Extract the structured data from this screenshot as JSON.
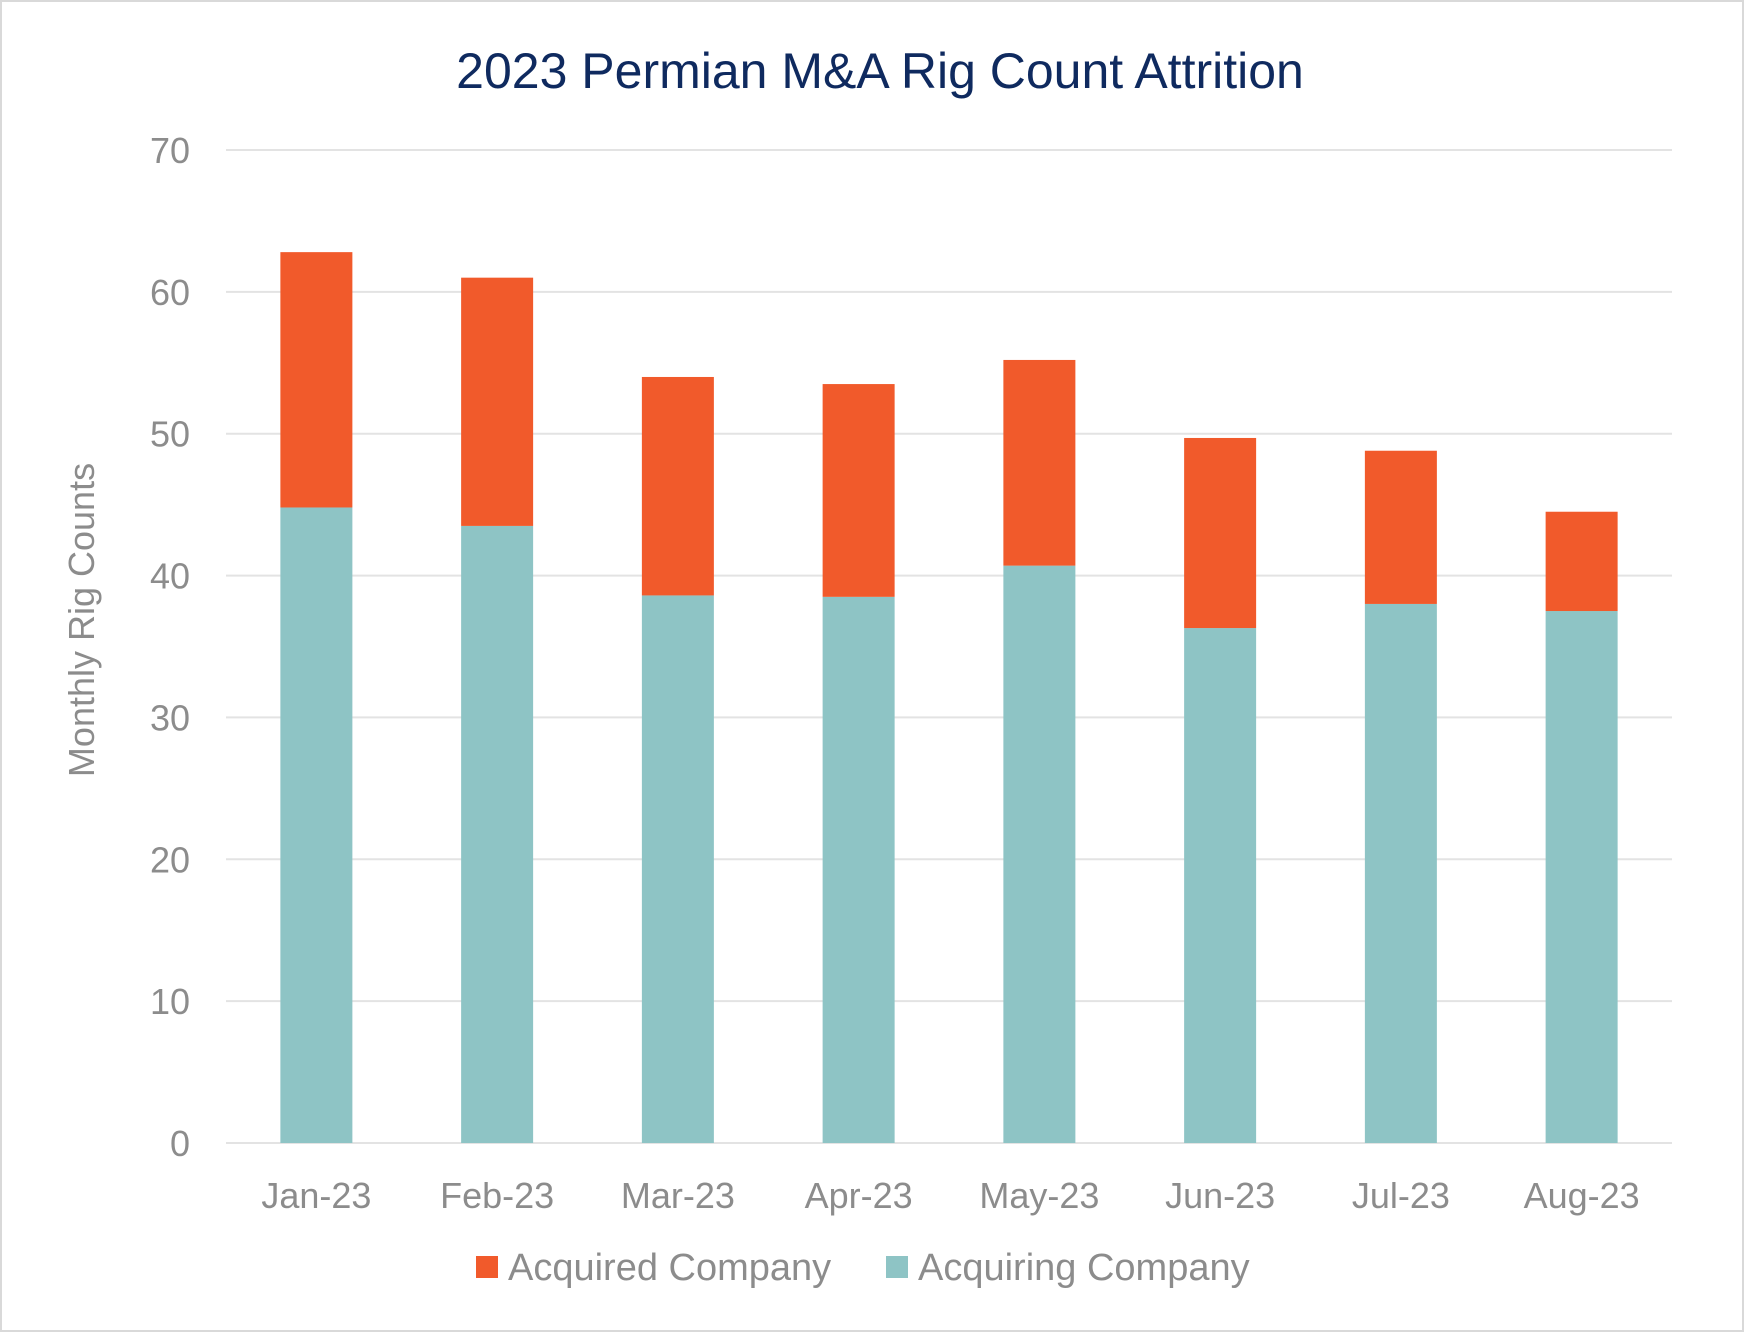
{
  "chart_data": {
    "type": "bar",
    "stacked": true,
    "title": "2023 Permian M&A Rig Count Attrition",
    "xlabel": "",
    "ylabel": "Monthly Rig Counts",
    "ylim": [
      0,
      70
    ],
    "yticks": [
      "0",
      "10",
      "20",
      "30",
      "40",
      "50",
      "60",
      "70"
    ],
    "grid": true,
    "legend_position": "bottom",
    "categories": [
      "Jan-23",
      "Feb-23",
      "Mar-23",
      "Apr-23",
      "May-23",
      "Jun-23",
      "Jul-23",
      "Aug-23"
    ],
    "series": [
      {
        "name": "Acquiring Company",
        "color": "#8ec4c5",
        "values": [
          44.8,
          43.5,
          38.6,
          38.5,
          40.7,
          36.3,
          38.0,
          37.5
        ]
      },
      {
        "name": "Acquired Company",
        "color": "#f15a2b",
        "values": [
          18.0,
          17.5,
          15.4,
          15.0,
          14.5,
          13.4,
          10.8,
          7.0
        ]
      }
    ],
    "legend": [
      {
        "name": "Acquired Company",
        "color": "#f15a2b"
      },
      {
        "name": "Acquiring Company",
        "color": "#8ec4c5"
      }
    ]
  }
}
